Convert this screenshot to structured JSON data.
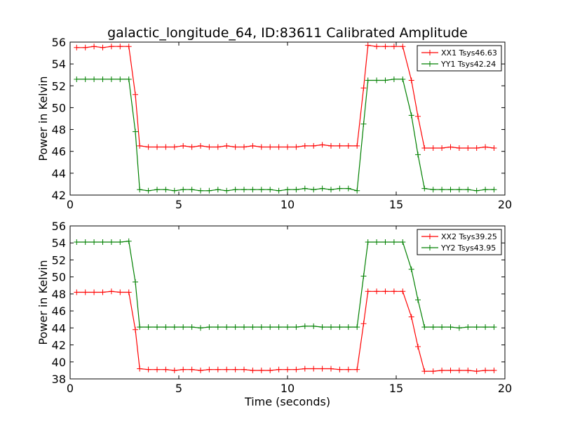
{
  "title": "galactic_longitude_64, ID:83611 Calibrated Amplitude",
  "chart_data": [
    {
      "type": "line",
      "ylabel": "Power in Kelvin",
      "xlabel": "",
      "xlim": [
        0,
        20
      ],
      "ylim": [
        42,
        56
      ],
      "xticks": [
        0,
        5,
        10,
        15,
        20
      ],
      "yticks": [
        42,
        44,
        46,
        48,
        50,
        52,
        54,
        56
      ],
      "legend": "top-right",
      "x": [
        0.3,
        0.7,
        1.1,
        1.5,
        1.9,
        2.3,
        2.7,
        3.0,
        3.2,
        3.6,
        4.0,
        4.4,
        4.8,
        5.2,
        5.6,
        6.0,
        6.4,
        6.8,
        7.2,
        7.6,
        8.0,
        8.4,
        8.8,
        9.2,
        9.6,
        10.0,
        10.4,
        10.8,
        11.2,
        11.6,
        12.0,
        12.4,
        12.8,
        13.2,
        13.5,
        13.7,
        14.1,
        14.5,
        14.9,
        15.3,
        15.7,
        16.0,
        16.3,
        16.7,
        17.1,
        17.5,
        17.9,
        18.3,
        18.7,
        19.1,
        19.5
      ],
      "series": [
        {
          "name": "XX1 Tsys46.63",
          "color": "#ff0000",
          "values": [
            55.5,
            55.5,
            55.6,
            55.5,
            55.6,
            55.6,
            55.6,
            51.2,
            46.5,
            46.4,
            46.4,
            46.4,
            46.4,
            46.5,
            46.4,
            46.5,
            46.4,
            46.4,
            46.5,
            46.4,
            46.4,
            46.5,
            46.4,
            46.4,
            46.4,
            46.4,
            46.4,
            46.5,
            46.5,
            46.6,
            46.5,
            46.5,
            46.5,
            46.5,
            51.8,
            55.7,
            55.6,
            55.6,
            55.6,
            55.6,
            52.5,
            49.2,
            46.3,
            46.3,
            46.3,
            46.4,
            46.3,
            46.3,
            46.3,
            46.4,
            46.3
          ]
        },
        {
          "name": "YY1 Tsys42.24",
          "color": "#008000",
          "values": [
            52.6,
            52.6,
            52.6,
            52.6,
            52.6,
            52.6,
            52.6,
            47.8,
            42.5,
            42.4,
            42.5,
            42.5,
            42.4,
            42.5,
            42.5,
            42.4,
            42.4,
            42.5,
            42.4,
            42.5,
            42.5,
            42.5,
            42.5,
            42.5,
            42.4,
            42.5,
            42.5,
            42.6,
            42.5,
            42.6,
            42.5,
            42.6,
            42.6,
            42.4,
            48.5,
            52.5,
            52.5,
            52.5,
            52.6,
            52.6,
            49.3,
            45.7,
            42.6,
            42.5,
            42.5,
            42.5,
            42.5,
            42.5,
            42.4,
            42.5,
            42.5
          ]
        }
      ]
    },
    {
      "type": "line",
      "ylabel": "Power in Kelvin",
      "xlabel": "Time (seconds)",
      "xlim": [
        0,
        20
      ],
      "ylim": [
        38,
        56
      ],
      "xticks": [
        0,
        5,
        10,
        15,
        20
      ],
      "yticks": [
        38,
        40,
        42,
        44,
        46,
        48,
        50,
        52,
        54,
        56
      ],
      "legend": "top-right",
      "x": [
        0.3,
        0.7,
        1.1,
        1.5,
        1.9,
        2.3,
        2.7,
        3.0,
        3.2,
        3.6,
        4.0,
        4.4,
        4.8,
        5.2,
        5.6,
        6.0,
        6.4,
        6.8,
        7.2,
        7.6,
        8.0,
        8.4,
        8.8,
        9.2,
        9.6,
        10.0,
        10.4,
        10.8,
        11.2,
        11.6,
        12.0,
        12.4,
        12.8,
        13.2,
        13.5,
        13.7,
        14.1,
        14.5,
        14.9,
        15.3,
        15.7,
        16.0,
        16.3,
        16.7,
        17.1,
        17.5,
        17.9,
        18.3,
        18.7,
        19.1,
        19.5
      ],
      "series": [
        {
          "name": "XX2 Tsys39.25",
          "color": "#ff0000",
          "values": [
            48.2,
            48.2,
            48.2,
            48.2,
            48.3,
            48.2,
            48.2,
            43.8,
            39.2,
            39.1,
            39.1,
            39.1,
            39.0,
            39.1,
            39.1,
            39.0,
            39.1,
            39.1,
            39.1,
            39.1,
            39.1,
            39.0,
            39.0,
            39.0,
            39.1,
            39.1,
            39.1,
            39.2,
            39.2,
            39.2,
            39.2,
            39.1,
            39.1,
            39.1,
            44.5,
            48.3,
            48.3,
            48.3,
            48.3,
            48.3,
            45.3,
            41.8,
            38.9,
            38.9,
            39.0,
            39.0,
            39.0,
            39.0,
            38.9,
            39.0,
            39.0
          ]
        },
        {
          "name": "YY2 Tsys43.95",
          "color": "#008000",
          "values": [
            54.1,
            54.1,
            54.1,
            54.1,
            54.1,
            54.1,
            54.2,
            49.4,
            44.1,
            44.1,
            44.1,
            44.1,
            44.1,
            44.1,
            44.1,
            44.0,
            44.1,
            44.1,
            44.1,
            44.1,
            44.1,
            44.1,
            44.1,
            44.1,
            44.1,
            44.1,
            44.1,
            44.2,
            44.2,
            44.1,
            44.1,
            44.1,
            44.1,
            44.1,
            50.1,
            54.1,
            54.1,
            54.1,
            54.1,
            54.1,
            50.9,
            47.3,
            44.1,
            44.1,
            44.1,
            44.1,
            44.0,
            44.1,
            44.1,
            44.1,
            44.1
          ]
        }
      ]
    }
  ]
}
